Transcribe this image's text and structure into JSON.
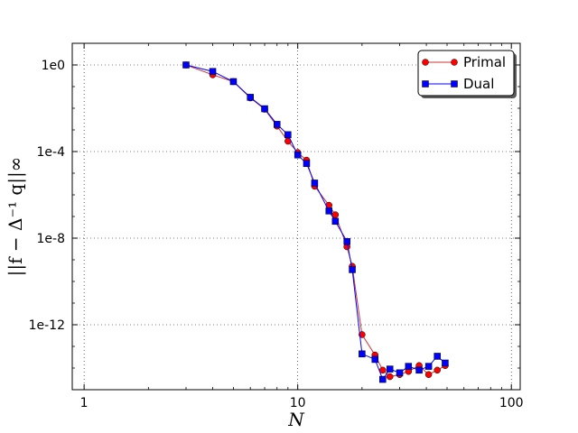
{
  "chart_data": {
    "type": "line",
    "title": "",
    "xlabel": "N",
    "ylabel": "||f − Δ⁻¹ q||∞",
    "xscale": "log",
    "yscale": "log",
    "xlim": [
      0.88,
      110
    ],
    "ylim": [
      1e-15,
      10.0
    ],
    "xticks": [
      1,
      10,
      100
    ],
    "xtick_labels": [
      "1",
      "10",
      "100"
    ],
    "yticks": [
      1e-12,
      1e-08,
      0.0001,
      1
    ],
    "ytick_labels": [
      "1e-12",
      "1e-8",
      "1e-4",
      "1e0"
    ],
    "grid": true,
    "legend_position": "top-right",
    "series": [
      {
        "name": "Primal",
        "color": "#ff0000",
        "line_color": "#cc3333",
        "marker": "circle",
        "x": [
          3,
          4,
          5,
          6,
          7,
          8,
          9,
          10,
          11,
          12,
          14,
          15,
          17,
          18,
          20,
          23,
          25,
          27,
          30,
          33,
          37,
          41,
          45,
          49
        ],
        "y": [
          1.0,
          0.35,
          0.17,
          0.03,
          0.009,
          0.0015,
          0.0003,
          9e-05,
          4e-05,
          2.5e-06,
          3.3e-07,
          1.2e-07,
          4e-09,
          5e-10,
          3.5e-13,
          4e-14,
          8e-15,
          4e-15,
          5e-15,
          7e-15,
          1.3e-14,
          5e-15,
          8e-15,
          1.3e-14
        ]
      },
      {
        "name": "Dual",
        "color": "#0000ff",
        "line_color": "#0000ff",
        "marker": "square",
        "x": [
          3,
          4,
          5,
          6,
          7,
          8,
          9,
          10,
          11,
          12,
          14,
          15,
          17,
          18,
          20,
          23,
          25,
          27,
          30,
          33,
          37,
          41,
          45,
          49
        ],
        "y": [
          1.0,
          0.5,
          0.17,
          0.032,
          0.0095,
          0.0018,
          0.0006,
          7e-05,
          2.8e-05,
          3.5e-06,
          1.8e-07,
          6e-08,
          7e-09,
          3.5e-10,
          4.5e-14,
          2.5e-14,
          3e-15,
          9e-15,
          6e-15,
          1.2e-14,
          8e-15,
          1.2e-14,
          3.5e-14,
          1.7e-14
        ]
      }
    ]
  }
}
